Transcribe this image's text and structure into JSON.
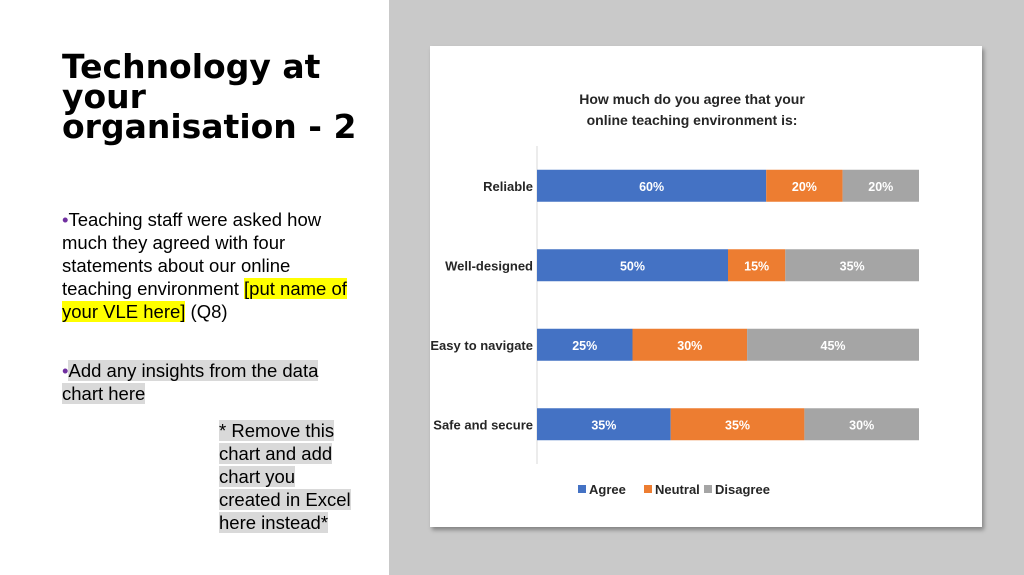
{
  "slide": {
    "title": "Technology at your organisation - 2",
    "bullet1": {
      "text": "Teaching staff were asked how much they agreed with four statements about our online teaching environment ",
      "highlight": "[put name of your VLE here]",
      "suffix": " (Q8)"
    },
    "bullet2": {
      "text": "Add any insights from the data chart here"
    },
    "note": "* Remove this chart and add chart you created in Excel here instead*",
    "colors": {
      "bullet": "#7030a0",
      "highlight_yellow": "#ffff00",
      "highlight_grey": "#d9d9d9",
      "background_right": "#c9c9c9"
    }
  },
  "chart_data": {
    "type": "bar",
    "orientation": "horizontal",
    "stacked": "percent",
    "title": "How much do you agree that your online teaching environment is:",
    "categories": [
      "Reliable",
      "Well-designed",
      "Easy to navigate",
      "Safe and secure"
    ],
    "series": [
      {
        "name": "Agree",
        "color": "#4472c4",
        "values": [
          60,
          50,
          25,
          35
        ]
      },
      {
        "name": "Neutral",
        "color": "#ed7d31",
        "values": [
          20,
          15,
          30,
          35
        ]
      },
      {
        "name": "Disagree",
        "color": "#a5a5a5",
        "values": [
          20,
          35,
          45,
          30
        ]
      }
    ],
    "data_labels": true,
    "legend": "bottom",
    "grid": false
  }
}
